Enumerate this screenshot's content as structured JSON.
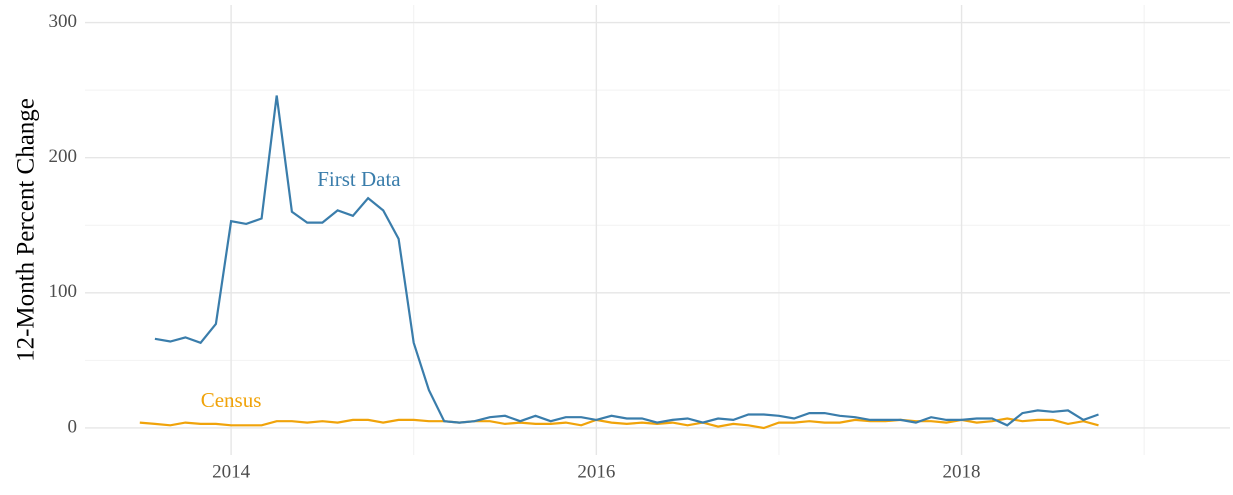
{
  "chart_data": {
    "type": "line",
    "y_label": "12-Month Percent Change",
    "x": [
      2013.5,
      2013.583,
      2013.667,
      2013.75,
      2013.833,
      2013.917,
      2014,
      2014.083,
      2014.167,
      2014.25,
      2014.333,
      2014.417,
      2014.5,
      2014.583,
      2014.667,
      2014.75,
      2014.833,
      2014.917,
      2015,
      2015.083,
      2015.167,
      2015.25,
      2015.333,
      2015.417,
      2015.5,
      2015.583,
      2015.667,
      2015.75,
      2015.833,
      2015.917,
      2016,
      2016.083,
      2016.167,
      2016.25,
      2016.333,
      2016.417,
      2016.5,
      2016.583,
      2016.667,
      2016.75,
      2016.833,
      2016.917,
      2017,
      2017.083,
      2017.167,
      2017.25,
      2017.333,
      2017.417,
      2017.5,
      2017.583,
      2017.667,
      2017.75,
      2017.833,
      2017.917,
      2018,
      2018.083,
      2018.167,
      2018.25,
      2018.333,
      2018.417,
      2018.5,
      2018.583,
      2018.667,
      2018.75
    ],
    "series": [
      {
        "name": "First Data",
        "color": "#3a7dab",
        "values": [
          null,
          66,
          64,
          67,
          63,
          77,
          153,
          151,
          155,
          246,
          160,
          152,
          152,
          161,
          157,
          170,
          161,
          140,
          63,
          28,
          5,
          4,
          5,
          8,
          9,
          5,
          9,
          5,
          8,
          8,
          6,
          9,
          7,
          7,
          4,
          6,
          7,
          4,
          7,
          6,
          10,
          10,
          9,
          7,
          11,
          11,
          9,
          8,
          6,
          6,
          6,
          4,
          8,
          6,
          6,
          7,
          7,
          2,
          11,
          13,
          12,
          13,
          6,
          10
        ]
      },
      {
        "name": "Census",
        "color": "#f0a30a",
        "values": [
          4,
          3,
          2,
          4,
          3,
          3,
          2,
          2,
          2,
          5,
          5,
          4,
          5,
          4,
          6,
          6,
          4,
          6,
          6,
          5,
          5,
          4,
          5,
          5,
          3,
          4,
          3,
          3,
          4,
          2,
          6,
          4,
          3,
          4,
          3,
          4,
          2,
          4,
          1,
          3,
          2,
          0,
          4,
          4,
          5,
          4,
          4,
          6,
          5,
          5,
          6,
          5,
          5,
          4,
          6,
          4,
          5,
          7,
          5,
          6,
          6,
          3,
          5,
          2
        ]
      }
    ],
    "xlim": [
      2013.2,
      2019.47
    ],
    "xticks": [
      2014,
      2016,
      2018
    ],
    "x_minor_ticks": [
      2015,
      2017,
      2019
    ],
    "ylim": [
      -20,
      313
    ],
    "yticks": [
      0,
      100,
      200,
      300
    ],
    "y_minor_ticks": [
      50,
      150,
      250
    ],
    "grid": true,
    "legend": "inline"
  }
}
